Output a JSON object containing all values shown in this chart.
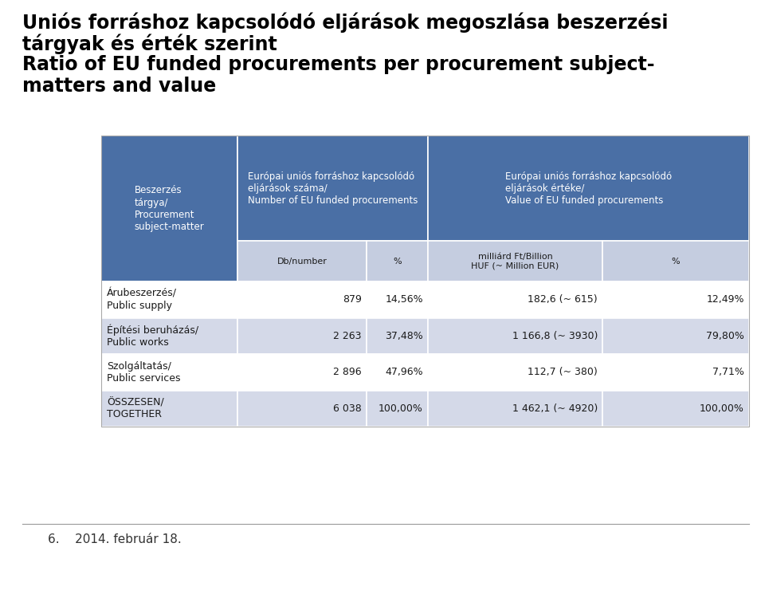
{
  "title_lines": [
    "Uniós forráshoz kapcsolódó eljárások megoszlása beszerzési",
    "tárgyak és érték szerint",
    "Ratio of EU funded procurements per procurement subject-",
    "matters and value"
  ],
  "bg_color": "#ffffff",
  "header_blue": "#4A6FA5",
  "header_light": "#C5CDE0",
  "row_white": "#ffffff",
  "row_light": "#D4D9E8",
  "col0_header": "Beszerzés\ntárgya/\nProcurement\nsubject-matter",
  "col1_header": "Európai uniós forráshoz kapcsolódó\neljárások száma/\nNumber of EU funded procurements",
  "col2_header": "Európai uniós forráshoz kapcsolódó\neljárások értéke/\nValue of EU funded procurements",
  "subheader_col1a": "Db/number",
  "subheader_col1b": "%",
  "subheader_col2a": "milliárd Ft/Billion\nHUF (~ Million EUR)",
  "subheader_col2b": "%",
  "rows": [
    {
      "label": "Árubeszerzés/\nPublic supply",
      "db": "879",
      "pct1": "14,56%",
      "huf": "182,6 (~ 615)",
      "pct2": "12,49%",
      "bg": "#ffffff"
    },
    {
      "label": "Építési beruházás/\nPublic works",
      "db": "2 263",
      "pct1": "37,48%",
      "huf": "1 166,8 (~ 3930)",
      "pct2": "79,80%",
      "bg": "#D4D9E8"
    },
    {
      "label": "Szolgáltatás/\nPublic services",
      "db": "2 896",
      "pct1": "47,96%",
      "huf": "112,7 (~ 380)",
      "pct2": "7,71%",
      "bg": "#ffffff"
    },
    {
      "label": "ÖSSZESEN/\nTOGETHER",
      "db": "6 038",
      "pct1": "100,00%",
      "huf": "1 462,1 (~ 4920)",
      "pct2": "100,00%",
      "bg": "#D4D9E8"
    }
  ],
  "footer_text": "6.    2014. február 18.",
  "footer_line_color": "#999999",
  "title_fontsize": 17,
  "header_fontsize": 8.5,
  "cell_fontsize": 9,
  "footer_fontsize": 11
}
